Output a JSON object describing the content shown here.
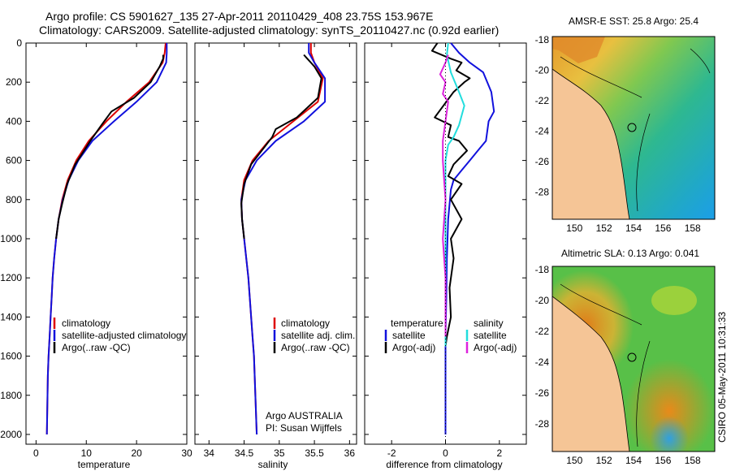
{
  "header": {
    "line1": "Argo profile: CS 5901627_135 27-Apr-2011 20110429_408 23.75S 153.967E",
    "line2": "Climatology: CARS2009. Satellite-adjusted climatology: synTS_20110427.nc (0.92d earlier)"
  },
  "side_text": "CSIRO 05-May-2011 10:31:33",
  "colors": {
    "climatology": "#dd0000",
    "satellite": "#1111dd",
    "argo": "#000000",
    "salinity_satellite": "#22dddd",
    "salinity_argo": "#dd22dd",
    "land": "#f5c596"
  },
  "chart_data": [
    {
      "type": "line",
      "id": "temperature",
      "xlabel": "temperature",
      "ylabel": "",
      "xlim": [
        -2,
        30
      ],
      "ylim": [
        2050,
        0
      ],
      "xticks": [
        "0",
        "10",
        "20",
        "30"
      ],
      "xtick_values": [
        0,
        10,
        20,
        30
      ],
      "yticks": [
        "0",
        "200",
        "400",
        "600",
        "800",
        "1000",
        "1200",
        "1400",
        "1600",
        "1800",
        "2000"
      ],
      "ytick_values": [
        0,
        200,
        400,
        600,
        800,
        1000,
        1200,
        1400,
        1600,
        1800,
        2000
      ],
      "legend": [
        "climatology",
        "satellite-adjusted climatology",
        "Argo(..raw -QC)"
      ],
      "series": [
        {
          "name": "climatology",
          "color": "#dd0000",
          "x": [
            25.8,
            25.6,
            25.2,
            22.5,
            18.0,
            14.0,
            10.5,
            8.0,
            6.3,
            5.2,
            4.5,
            4.0,
            3.6,
            3.3,
            3.1,
            2.9,
            2.7,
            2.5,
            2.35,
            2.25,
            2.15
          ],
          "y": [
            0,
            50,
            100,
            200,
            300,
            400,
            500,
            600,
            700,
            800,
            900,
            1000,
            1100,
            1200,
            1300,
            1400,
            1500,
            1600,
            1700,
            1850,
            2000
          ]
        },
        {
          "name": "satellite-adjusted climatology",
          "color": "#1111dd",
          "x": [
            26.0,
            26.0,
            25.9,
            24.0,
            20.0,
            15.5,
            11.2,
            8.4,
            6.5,
            5.3,
            4.5,
            4.0,
            3.6,
            3.3,
            3.1,
            2.9,
            2.7,
            2.5,
            2.35,
            2.25,
            2.15
          ],
          "y": [
            0,
            50,
            100,
            200,
            300,
            400,
            500,
            600,
            700,
            800,
            900,
            1000,
            1100,
            1200,
            1300,
            1400,
            1500,
            1600,
            1700,
            1850,
            2000
          ]
        },
        {
          "name": "Argo(..raw -QC)",
          "color": "#000000",
          "x": [
            25.3,
            25.3,
            24.6,
            22.8,
            19.5,
            15.0,
            13.0,
            10.8,
            7.8,
            6.2,
            5.2,
            4.5,
            4.0
          ],
          "y": [
            60,
            80,
            120,
            200,
            280,
            350,
            420,
            500,
            620,
            720,
            820,
            900,
            1000
          ]
        }
      ]
    },
    {
      "type": "line",
      "id": "salinity",
      "xlabel": "salinity",
      "ylabel": "",
      "xlim": [
        33.8,
        36.1
      ],
      "ylim": [
        2050,
        0
      ],
      "xticks": [
        "34",
        "34.5",
        "35",
        "35.5",
        "36"
      ],
      "xtick_values": [
        34,
        34.5,
        35,
        35.5,
        36
      ],
      "legend": [
        "climatology",
        "satellite adj. clim.",
        "Argo(..raw -QC)"
      ],
      "annotation": [
        "Argo AUSTRALIA",
        "PI: Susan Wijffels"
      ],
      "series": [
        {
          "name": "climatology",
          "color": "#dd0000",
          "x": [
            35.45,
            35.45,
            35.5,
            35.62,
            35.55,
            35.2,
            34.85,
            34.62,
            34.5,
            34.46,
            34.47,
            34.5,
            34.53,
            34.56,
            34.58,
            34.6,
            34.62,
            34.64,
            34.66,
            34.68
          ],
          "y": [
            0,
            50,
            100,
            180,
            300,
            400,
            500,
            600,
            700,
            800,
            900,
            1000,
            1100,
            1200,
            1300,
            1400,
            1500,
            1600,
            1800,
            2000
          ]
        },
        {
          "name": "satellite adj. clim.",
          "color": "#1111dd",
          "x": [
            35.42,
            35.42,
            35.5,
            35.65,
            35.65,
            35.35,
            34.95,
            34.68,
            34.52,
            34.46,
            34.47,
            34.5,
            34.53,
            34.56,
            34.58,
            34.6,
            34.62,
            34.64,
            34.66,
            34.68
          ],
          "y": [
            0,
            50,
            100,
            180,
            300,
            400,
            500,
            600,
            700,
            800,
            900,
            1000,
            1100,
            1200,
            1300,
            1400,
            1500,
            1600,
            1800,
            2000
          ]
        },
        {
          "name": "Argo(..raw -QC)",
          "color": "#000000",
          "x": [
            35.35,
            35.4,
            35.5,
            35.6,
            35.55,
            35.25,
            34.95,
            34.9,
            34.6,
            34.5,
            34.46,
            34.47,
            34.5
          ],
          "y": [
            60,
            80,
            120,
            180,
            280,
            380,
            440,
            480,
            620,
            720,
            820,
            900,
            1000
          ]
        }
      ]
    },
    {
      "type": "line",
      "id": "difference",
      "xlabel": "difference from climatology",
      "ylabel": "",
      "xlim": [
        -3,
        3
      ],
      "ylim": [
        2050,
        0
      ],
      "xticks": [
        "-2",
        "0",
        "2"
      ],
      "xtick_values": [
        -2,
        0,
        2
      ],
      "legend_temperature": [
        "temperature",
        "satellite",
        "Argo(-adj)"
      ],
      "legend_salinity": [
        "salinity",
        "satellite",
        "Argo(-adj)"
      ],
      "series": [
        {
          "name": "satellite",
          "color": "#1111dd",
          "x": [
            0.2,
            0.5,
            0.9,
            1.4,
            1.7,
            1.8,
            1.6,
            1.5,
            1.2,
            0.9,
            0.6,
            0.3,
            0.2,
            0.1,
            0.05,
            0.03,
            0.0,
            0.0,
            0.0
          ],
          "y": [
            0,
            50,
            100,
            150,
            250,
            350,
            400,
            500,
            550,
            600,
            650,
            700,
            750,
            900,
            1100,
            1300,
            1500,
            1800,
            2000
          ]
        },
        {
          "name": "Argo(-adj)",
          "color": "#000000",
          "x": [
            -0.3,
            -0.5,
            0.2,
            0.6,
            0.4,
            0.9,
            0.7,
            0.3,
            -0.4,
            0.2,
            0.1,
            0.5,
            0.8,
            0.3,
            0.1,
            0.6,
            0.2,
            0.6,
            0.2,
            0.3,
            0.15,
            0.2,
            0.05,
            0.0
          ],
          "y": [
            0,
            40,
            80,
            100,
            140,
            180,
            200,
            250,
            380,
            420,
            480,
            500,
            550,
            620,
            680,
            720,
            800,
            900,
            1000,
            1100,
            1250,
            1400,
            1500,
            1550
          ]
        },
        {
          "name": "satellite",
          "color": "#22dddd",
          "x": [
            0.1,
            0.05,
            0.2,
            0.5,
            0.7,
            0.5,
            0.3,
            0.1,
            0.0,
            0.0,
            0.0,
            0.0
          ],
          "y": [
            0,
            60,
            150,
            250,
            320,
            420,
            480,
            520,
            600,
            900,
            1300,
            1550
          ]
        },
        {
          "name": "Argo(-adj)",
          "color": "#dd22dd",
          "x": [
            0.1,
            0.0,
            -0.2,
            0.0,
            -0.1,
            0.1,
            0.0,
            -0.1,
            -0.1,
            -0.05,
            0.0,
            -0.1,
            0.0,
            0.0
          ],
          "y": [
            60,
            100,
            160,
            200,
            260,
            300,
            400,
            500,
            600,
            700,
            800,
            1000,
            1200,
            1500
          ]
        }
      ]
    },
    {
      "type": "heatmap",
      "id": "sst_map",
      "title": "AMSR-E SST: 25.8 Argo: 25.4",
      "xlim": [
        148.5,
        159.5
      ],
      "ylim": [
        -29.8,
        -17.8
      ],
      "xticks": [
        "150",
        "152",
        "154",
        "156",
        "158"
      ],
      "xtick_values": [
        150,
        152,
        154,
        156,
        158
      ],
      "yticks": [
        "-18",
        "-20",
        "-22",
        "-24",
        "-26",
        "-28"
      ],
      "ytick_values": [
        -18,
        -20,
        -22,
        -24,
        -26,
        -28
      ],
      "marker": {
        "lon": 153.967,
        "lat": -23.75
      }
    },
    {
      "type": "heatmap",
      "id": "sla_map",
      "title": "Altimetric SLA: 0.13 Argo: 0.041",
      "xlim": [
        148.5,
        159.5
      ],
      "ylim": [
        -29.8,
        -17.8
      ],
      "xticks": [
        "150",
        "152",
        "154",
        "156",
        "158"
      ],
      "xtick_values": [
        150,
        152,
        154,
        156,
        158
      ],
      "yticks": [
        "-18",
        "-20",
        "-22",
        "-24",
        "-26",
        "-28"
      ],
      "ytick_values": [
        -18,
        -20,
        -22,
        -24,
        -26,
        -28
      ],
      "marker": {
        "lon": 153.967,
        "lat": -23.75
      }
    }
  ]
}
